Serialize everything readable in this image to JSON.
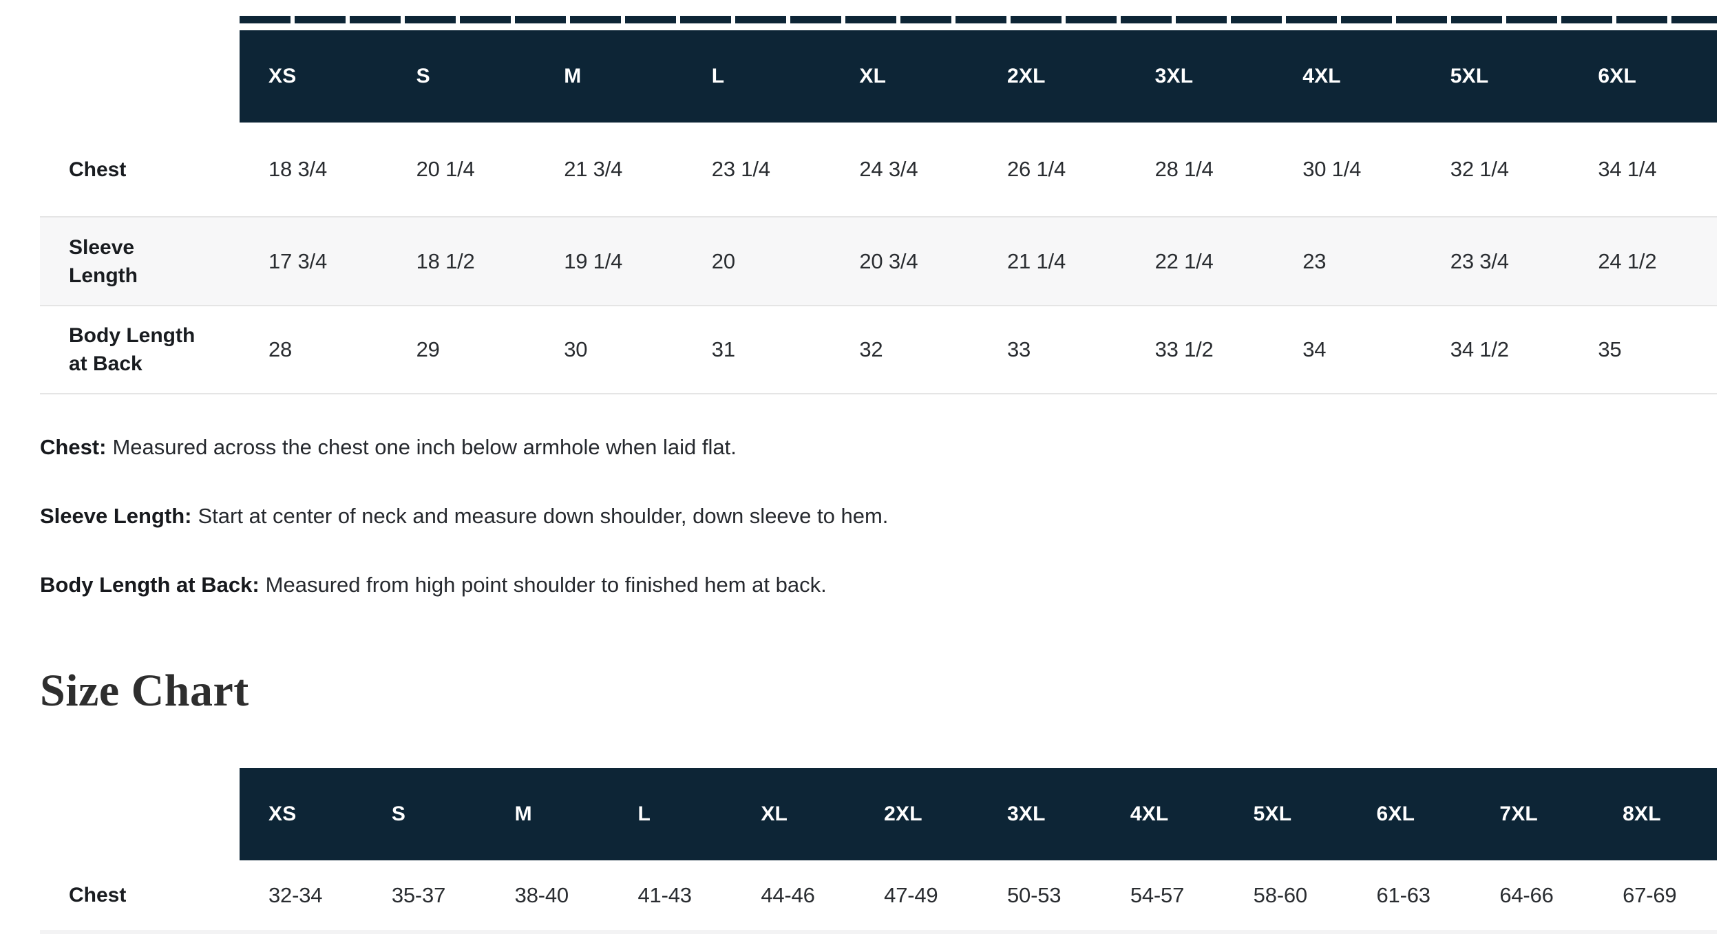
{
  "page": {
    "heading": "Size Chart"
  },
  "colors": {
    "header_bg": "#0d2536",
    "header_text": "#ffffff",
    "row_alt_bg": "#f7f7f8",
    "separator": "#e5e5e5",
    "text": "#26292e"
  },
  "table1": {
    "columns": [
      "XS",
      "S",
      "M",
      "L",
      "XL",
      "2XL",
      "3XL",
      "4XL",
      "5XL",
      "6XL"
    ],
    "rows": [
      {
        "label": "Chest",
        "values": [
          "18 3/4",
          "20 1/4",
          "21 3/4",
          "23 1/4",
          "24 3/4",
          "26 1/4",
          "28 1/4",
          "30 1/4",
          "32 1/4",
          "34 1/4"
        ]
      },
      {
        "label": "Sleeve Length",
        "values": [
          "17 3/4",
          "18 1/2",
          "19 1/4",
          "20",
          "20 3/4",
          "21 1/4",
          "22 1/4",
          "23",
          "23 3/4",
          "24 1/2"
        ]
      },
      {
        "label": "Body Length at Back",
        "values": [
          "28",
          "29",
          "30",
          "31",
          "32",
          "33",
          "33 1/2",
          "34",
          "34 1/2",
          "35"
        ]
      }
    ]
  },
  "notes": [
    {
      "term": "Chest:",
      "text": "Measured across the chest one inch below armhole when laid flat."
    },
    {
      "term": "Sleeve Length:",
      "text": "Start at center of neck and measure down shoulder, down sleeve to hem."
    },
    {
      "term": "Body Length at Back:",
      "text": "Measured from high point shoulder to finished hem at back."
    }
  ],
  "table2": {
    "columns": [
      "XS",
      "S",
      "M",
      "L",
      "XL",
      "2XL",
      "3XL",
      "4XL",
      "5XL",
      "6XL",
      "7XL",
      "8XL"
    ],
    "rows": [
      {
        "label": "Chest",
        "values": [
          "32-34",
          "35-37",
          "38-40",
          "41-43",
          "44-46",
          "47-49",
          "50-53",
          "54-57",
          "58-60",
          "61-63",
          "64-66",
          "67-69"
        ]
      }
    ]
  }
}
